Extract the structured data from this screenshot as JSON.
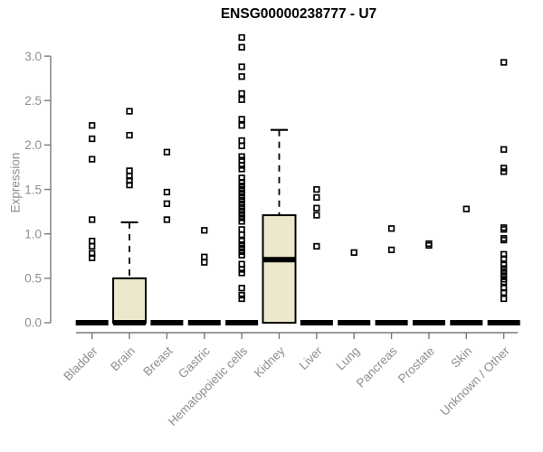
{
  "chart_data": {
    "type": "boxplot",
    "title": "ENSG00000238777 - U7",
    "ylabel": "Expression",
    "xlabel": "",
    "ylim": [
      0,
      3.25
    ],
    "yticks": [
      0.0,
      0.5,
      1.0,
      1.5,
      2.0,
      2.5,
      3.0
    ],
    "grid": "off",
    "point_marker": "open-square",
    "colors": {
      "box_fill": "#EDE7CC",
      "box_stroke": "#000000",
      "median_color": "#000000",
      "axis_color": "#7a7a7a",
      "tick_label_color": "#8e8e8e",
      "title_color": "#000000"
    },
    "categories": [
      "Bladder",
      "Brain",
      "Breast",
      "Gastric",
      "Hematopoietic cells",
      "Kidney",
      "Liver",
      "Lung",
      "Pancreas",
      "Prostate",
      "Skin",
      "Unknown / Other"
    ],
    "series": [
      {
        "label": "Bladder",
        "q1": 0,
        "median": 0,
        "q3": 0,
        "whisker_high": 0,
        "outliers": [
          2.22,
          2.07,
          1.84,
          1.16,
          0.92,
          0.86,
          0.78,
          0.73
        ]
      },
      {
        "label": "Brain",
        "q1": 0,
        "median": 0,
        "q3": 0.5,
        "whisker_high": 1.13,
        "outliers": [
          2.38,
          2.11,
          1.71,
          1.65,
          1.6,
          1.55
        ]
      },
      {
        "label": "Breast",
        "q1": 0,
        "median": 0,
        "q3": 0,
        "whisker_high": 0,
        "outliers": [
          1.92,
          1.47,
          1.34,
          1.16
        ]
      },
      {
        "label": "Gastric",
        "q1": 0,
        "median": 0,
        "q3": 0,
        "whisker_high": 0,
        "outliers": [
          1.04,
          0.74,
          0.68
        ]
      },
      {
        "label": "Hematopoietic cells",
        "q1": 0,
        "median": 0,
        "q3": 0,
        "whisker_high": 0,
        "outliers": [
          3.21,
          3.1,
          2.88,
          2.77,
          2.58,
          2.51,
          2.29,
          2.22,
          2.05,
          1.99,
          1.87,
          1.83,
          1.77,
          1.73,
          1.63,
          1.58,
          1.54,
          1.5,
          1.46,
          1.42,
          1.38,
          1.34,
          1.3,
          1.26,
          1.22,
          1.18,
          1.14,
          1.05,
          0.99,
          0.92,
          0.88,
          0.84,
          0.8,
          0.76,
          0.66,
          0.6,
          0.56,
          0.39,
          0.31,
          0.27
        ]
      },
      {
        "label": "Kidney",
        "q1": 0,
        "median": 0.71,
        "q3": 1.21,
        "whisker_high": 2.17,
        "outliers": []
      },
      {
        "label": "Liver",
        "q1": 0,
        "median": 0,
        "q3": 0,
        "whisker_high": 0,
        "outliers": [
          1.5,
          1.41,
          1.29,
          1.21,
          0.86
        ]
      },
      {
        "label": "Lung",
        "q1": 0,
        "median": 0,
        "q3": 0,
        "whisker_high": 0,
        "outliers": [
          0.79
        ]
      },
      {
        "label": "Pancreas",
        "q1": 0,
        "median": 0,
        "q3": 0,
        "whisker_high": 0,
        "outliers": [
          1.06,
          0.82
        ]
      },
      {
        "label": "Prostate",
        "q1": 0,
        "median": 0,
        "q3": 0,
        "whisker_high": 0,
        "outliers": [
          0.89,
          0.87
        ]
      },
      {
        "label": "Skin",
        "q1": 0,
        "median": 0,
        "q3": 0,
        "whisker_high": 0,
        "outliers": [
          1.28
        ]
      },
      {
        "label": "Unknown / Other",
        "q1": 0,
        "median": 0,
        "q3": 0,
        "whisker_high": 0,
        "outliers": [
          2.93,
          1.95,
          1.74,
          1.7,
          1.07,
          1.05,
          0.95,
          0.93,
          0.77,
          0.72,
          0.65,
          0.61,
          0.57,
          0.53,
          0.49,
          0.46,
          0.39,
          0.34,
          0.27
        ]
      }
    ]
  }
}
